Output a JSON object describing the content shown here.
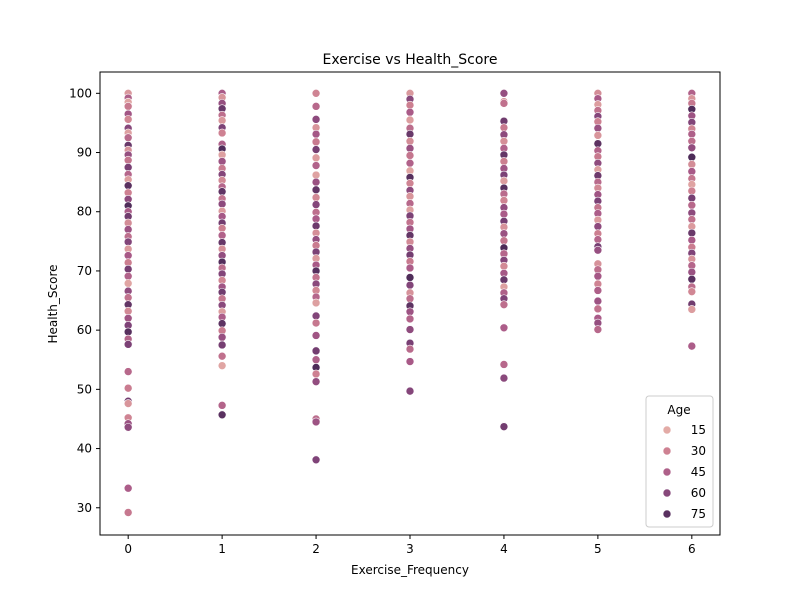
{
  "chart_data": {
    "type": "scatter",
    "title": "Exercise vs Health_Score",
    "xlabel": "Exercise_Frequency",
    "ylabel": "Health_Score",
    "xlim": [
      -0.3,
      6.3
    ],
    "ylim": [
      25.4,
      103.6
    ],
    "x_ticks": [
      0,
      1,
      2,
      3,
      4,
      5,
      6
    ],
    "y_ticks": [
      30,
      40,
      50,
      60,
      70,
      80,
      90,
      100
    ],
    "grid": false,
    "hue": {
      "name": "Age",
      "range": [
        15,
        80
      ],
      "colors": [
        "#e3aba6",
        "#cc7e90",
        "#a95a88",
        "#7d4277",
        "#4a2a56"
      ]
    },
    "legend": {
      "title": "Age",
      "position": "lower right",
      "entries": [
        {
          "label": "15",
          "age": 15
        },
        {
          "label": "30",
          "age": 30
        },
        {
          "label": "45",
          "age": 45
        },
        {
          "label": "60",
          "age": 60
        },
        {
          "label": "75",
          "age": 75
        }
      ]
    },
    "points": [
      [
        0,
        100,
        22
      ],
      [
        0,
        99.2,
        45
      ],
      [
        0,
        98.5,
        18
      ],
      [
        0,
        97.8,
        33
      ],
      [
        0,
        96.5,
        50
      ],
      [
        0,
        95.6,
        28
      ],
      [
        0,
        94.1,
        60
      ],
      [
        0,
        93.3,
        19
      ],
      [
        0,
        92.5,
        40
      ],
      [
        0,
        91.2,
        70
      ],
      [
        0,
        90.4,
        24
      ],
      [
        0,
        89.6,
        55
      ],
      [
        0,
        88.7,
        35
      ],
      [
        0,
        87.5,
        65
      ],
      [
        0,
        86.3,
        42
      ],
      [
        0,
        85.4,
        20
      ],
      [
        0,
        84.4,
        75
      ],
      [
        0,
        83.2,
        30
      ],
      [
        0,
        82.1,
        58
      ],
      [
        0,
        81.0,
        78
      ],
      [
        0,
        80.0,
        47
      ],
      [
        0,
        79.2,
        68
      ],
      [
        0,
        78.1,
        26
      ],
      [
        0,
        77.0,
        52
      ],
      [
        0,
        75.8,
        38
      ],
      [
        0,
        74.9,
        62
      ],
      [
        0,
        73.7,
        21
      ],
      [
        0,
        72.6,
        48
      ],
      [
        0,
        71.4,
        31
      ],
      [
        0,
        70.3,
        66
      ],
      [
        0,
        69.1,
        44
      ],
      [
        0,
        67.9,
        17
      ],
      [
        0,
        66.6,
        56
      ],
      [
        0,
        65.5,
        36
      ],
      [
        0,
        64.3,
        72
      ],
      [
        0,
        63.2,
        27
      ],
      [
        0,
        62.0,
        51
      ],
      [
        0,
        60.8,
        63
      ],
      [
        0,
        59.7,
        76
      ],
      [
        0,
        58.5,
        43
      ],
      [
        0,
        57.6,
        64
      ],
      [
        0,
        53.0,
        41
      ],
      [
        0,
        50.2,
        32
      ],
      [
        0,
        48.0,
        67
      ],
      [
        0,
        47.6,
        23
      ],
      [
        0,
        45.2,
        29
      ],
      [
        0,
        44.2,
        53
      ],
      [
        0,
        43.6,
        57
      ],
      [
        0,
        33.3,
        46
      ],
      [
        0,
        29.2,
        34
      ],
      [
        1,
        100,
        47
      ],
      [
        1,
        99.3,
        23
      ],
      [
        1,
        98.3,
        55
      ],
      [
        1,
        97.4,
        70
      ],
      [
        1,
        96.3,
        38
      ],
      [
        1,
        95.4,
        22
      ],
      [
        1,
        94.2,
        64
      ],
      [
        1,
        93.3,
        30
      ],
      [
        1,
        91.4,
        45
      ],
      [
        1,
        90.6,
        78
      ],
      [
        1,
        89.6,
        19
      ],
      [
        1,
        88.5,
        52
      ],
      [
        1,
        87.3,
        33
      ],
      [
        1,
        86.3,
        61
      ],
      [
        1,
        85.3,
        27
      ],
      [
        1,
        84.2,
        42
      ],
      [
        1,
        83.4,
        73
      ],
      [
        1,
        82.2,
        36
      ],
      [
        1,
        81.3,
        58
      ],
      [
        1,
        80.1,
        21
      ],
      [
        1,
        79.2,
        49
      ],
      [
        1,
        78.1,
        67
      ],
      [
        1,
        77.2,
        31
      ],
      [
        1,
        76.0,
        44
      ],
      [
        1,
        74.8,
        71
      ],
      [
        1,
        73.7,
        25
      ],
      [
        1,
        72.6,
        56
      ],
      [
        1,
        71.5,
        77
      ],
      [
        1,
        70.5,
        39
      ],
      [
        1,
        69.5,
        62
      ],
      [
        1,
        68.4,
        28
      ],
      [
        1,
        67.3,
        51
      ],
      [
        1,
        66.4,
        68
      ],
      [
        1,
        65.3,
        35
      ],
      [
        1,
        64.2,
        59
      ],
      [
        1,
        63.1,
        20
      ],
      [
        1,
        62.2,
        46
      ],
      [
        1,
        61.1,
        74
      ],
      [
        1,
        59.9,
        32
      ],
      [
        1,
        58.8,
        54
      ],
      [
        1,
        57.5,
        66
      ],
      [
        1,
        55.6,
        37
      ],
      [
        1,
        54.0,
        17
      ],
      [
        1,
        47.3,
        43
      ],
      [
        1,
        45.7,
        75
      ],
      [
        2,
        100,
        29
      ],
      [
        2,
        97.8,
        41
      ],
      [
        2,
        95.6,
        58
      ],
      [
        2,
        94.2,
        23
      ],
      [
        2,
        93.1,
        49
      ],
      [
        2,
        91.8,
        33
      ],
      [
        2,
        90.5,
        66
      ],
      [
        2,
        89.1,
        20
      ],
      [
        2,
        87.8,
        44
      ],
      [
        2,
        86.2,
        18
      ],
      [
        2,
        85.0,
        53
      ],
      [
        2,
        83.7,
        72
      ],
      [
        2,
        82.4,
        27
      ],
      [
        2,
        81.2,
        61
      ],
      [
        2,
        79.9,
        38
      ],
      [
        2,
        78.8,
        47
      ],
      [
        2,
        77.6,
        69
      ],
      [
        2,
        76.4,
        25
      ],
      [
        2,
        75.3,
        55
      ],
      [
        2,
        74.3,
        32
      ],
      [
        2,
        73.2,
        64
      ],
      [
        2,
        72.1,
        21
      ],
      [
        2,
        71.0,
        48
      ],
      [
        2,
        70.0,
        76
      ],
      [
        2,
        68.9,
        36
      ],
      [
        2,
        67.8,
        59
      ],
      [
        2,
        66.7,
        28
      ],
      [
        2,
        65.6,
        42
      ],
      [
        2,
        64.6,
        19
      ],
      [
        2,
        62.4,
        62
      ],
      [
        2,
        61.2,
        34
      ],
      [
        2,
        59.1,
        51
      ],
      [
        2,
        56.5,
        67
      ],
      [
        2,
        55.0,
        45
      ],
      [
        2,
        53.7,
        79
      ],
      [
        2,
        52.6,
        30
      ],
      [
        2,
        51.3,
        56
      ],
      [
        2,
        45.0,
        39
      ],
      [
        2,
        44.5,
        52
      ],
      [
        2,
        38.1,
        63
      ],
      [
        3,
        100,
        22
      ],
      [
        3,
        99.0,
        60
      ],
      [
        3,
        98.0,
        31
      ],
      [
        3,
        96.8,
        47
      ],
      [
        3,
        95.5,
        20
      ],
      [
        3,
        94.1,
        39
      ],
      [
        3,
        93.1,
        70
      ],
      [
        3,
        91.9,
        26
      ],
      [
        3,
        90.7,
        53
      ],
      [
        3,
        89.5,
        35
      ],
      [
        3,
        88.2,
        44
      ],
      [
        3,
        86.9,
        17
      ],
      [
        3,
        85.8,
        76
      ],
      [
        3,
        84.8,
        29
      ],
      [
        3,
        83.6,
        58
      ],
      [
        3,
        82.6,
        23
      ],
      [
        3,
        81.4,
        41
      ],
      [
        3,
        80.3,
        19
      ],
      [
        3,
        79.3,
        64
      ],
      [
        3,
        78.2,
        36
      ],
      [
        3,
        77.1,
        50
      ],
      [
        3,
        76.0,
        72
      ],
      [
        3,
        74.9,
        27
      ],
      [
        3,
        73.8,
        55
      ],
      [
        3,
        72.7,
        67
      ],
      [
        3,
        71.6,
        33
      ],
      [
        3,
        70.5,
        46
      ],
      [
        3,
        68.9,
        78
      ],
      [
        3,
        67.6,
        62
      ],
      [
        3,
        66.3,
        24
      ],
      [
        3,
        65.3,
        38
      ],
      [
        3,
        64.1,
        74
      ],
      [
        3,
        63.1,
        52
      ],
      [
        3,
        61.9,
        43
      ],
      [
        3,
        60.1,
        57
      ],
      [
        3,
        57.8,
        65
      ],
      [
        3,
        56.8,
        40
      ],
      [
        3,
        54.7,
        48
      ],
      [
        3,
        49.7,
        61
      ],
      [
        4,
        100,
        55
      ],
      [
        4,
        98.6,
        22
      ],
      [
        4,
        98.3,
        37
      ],
      [
        4,
        95.3,
        68
      ],
      [
        4,
        94.2,
        33
      ],
      [
        4,
        93.0,
        58
      ],
      [
        4,
        91.9,
        25
      ],
      [
        4,
        90.7,
        44
      ],
      [
        4,
        89.6,
        72
      ],
      [
        4,
        88.5,
        31
      ],
      [
        4,
        87.3,
        51
      ],
      [
        4,
        86.2,
        64
      ],
      [
        4,
        85.2,
        20
      ],
      [
        4,
        84.0,
        76
      ],
      [
        4,
        83.0,
        40
      ],
      [
        4,
        81.9,
        29
      ],
      [
        4,
        80.7,
        56
      ],
      [
        4,
        79.6,
        47
      ],
      [
        4,
        78.4,
        66
      ],
      [
        4,
        77.4,
        24
      ],
      [
        4,
        76.3,
        53
      ],
      [
        4,
        75.1,
        35
      ],
      [
        4,
        73.9,
        79
      ],
      [
        4,
        72.9,
        42
      ],
      [
        4,
        71.8,
        61
      ],
      [
        4,
        70.8,
        27
      ],
      [
        4,
        69.6,
        49
      ],
      [
        4,
        68.5,
        70
      ],
      [
        4,
        67.3,
        19
      ],
      [
        4,
        66.3,
        45
      ],
      [
        4,
        65.3,
        63
      ],
      [
        4,
        64.3,
        38
      ],
      [
        4,
        60.4,
        46
      ],
      [
        4,
        54.2,
        41
      ],
      [
        4,
        51.9,
        59
      ],
      [
        4,
        43.7,
        67
      ],
      [
        5,
        100,
        26
      ],
      [
        5,
        99.1,
        48
      ],
      [
        5,
        98.1,
        20
      ],
      [
        5,
        97.1,
        37
      ],
      [
        5,
        96.1,
        61
      ],
      [
        5,
        95.2,
        30
      ],
      [
        5,
        94.1,
        53
      ],
      [
        5,
        92.9,
        23
      ],
      [
        5,
        91.5,
        74
      ],
      [
        5,
        90.3,
        43
      ],
      [
        5,
        89.3,
        33
      ],
      [
        5,
        88.2,
        57
      ],
      [
        5,
        87.1,
        19
      ],
      [
        5,
        86.1,
        69
      ],
      [
        5,
        85.0,
        40
      ],
      [
        5,
        84.0,
        27
      ],
      [
        5,
        82.9,
        51
      ],
      [
        5,
        81.8,
        64
      ],
      [
        5,
        80.7,
        35
      ],
      [
        5,
        79.7,
        46
      ],
      [
        5,
        78.6,
        21
      ],
      [
        5,
        77.5,
        58
      ],
      [
        5,
        76.3,
        31
      ],
      [
        5,
        75.3,
        42
      ],
      [
        5,
        74.1,
        66
      ],
      [
        5,
        73.5,
        54
      ],
      [
        5,
        71.2,
        24
      ],
      [
        5,
        70.2,
        38
      ],
      [
        5,
        69.1,
        49
      ],
      [
        5,
        67.8,
        29
      ],
      [
        5,
        66.7,
        45
      ],
      [
        5,
        64.9,
        52
      ],
      [
        5,
        63.6,
        36
      ],
      [
        5,
        62.0,
        47
      ],
      [
        5,
        61.2,
        55
      ],
      [
        5,
        60.1,
        41
      ],
      [
        6,
        100,
        44
      ],
      [
        6,
        99.1,
        23
      ],
      [
        6,
        98.3,
        34
      ],
      [
        6,
        97.3,
        78
      ],
      [
        6,
        96.2,
        52
      ],
      [
        6,
        95.1,
        62
      ],
      [
        6,
        94.0,
        29
      ],
      [
        6,
        93.1,
        45
      ],
      [
        6,
        91.9,
        38
      ],
      [
        6,
        90.8,
        56
      ],
      [
        6,
        89.2,
        79
      ],
      [
        6,
        88.0,
        26
      ],
      [
        6,
        86.8,
        48
      ],
      [
        6,
        85.6,
        35
      ],
      [
        6,
        84.6,
        18
      ],
      [
        6,
        83.5,
        30
      ],
      [
        6,
        82.3,
        66
      ],
      [
        6,
        81.1,
        41
      ],
      [
        6,
        79.8,
        58
      ],
      [
        6,
        78.7,
        37
      ],
      [
        6,
        77.5,
        21
      ],
      [
        6,
        76.4,
        70
      ],
      [
        6,
        75.2,
        47
      ],
      [
        6,
        74.0,
        32
      ],
      [
        6,
        73.0,
        63
      ],
      [
        6,
        72.0,
        24
      ],
      [
        6,
        70.9,
        42
      ],
      [
        6,
        69.8,
        53
      ],
      [
        6,
        68.6,
        75
      ],
      [
        6,
        67.3,
        39
      ],
      [
        6,
        66.5,
        28
      ],
      [
        6,
        64.4,
        68
      ],
      [
        6,
        63.5,
        20
      ],
      [
        6,
        57.3,
        46
      ]
    ]
  }
}
